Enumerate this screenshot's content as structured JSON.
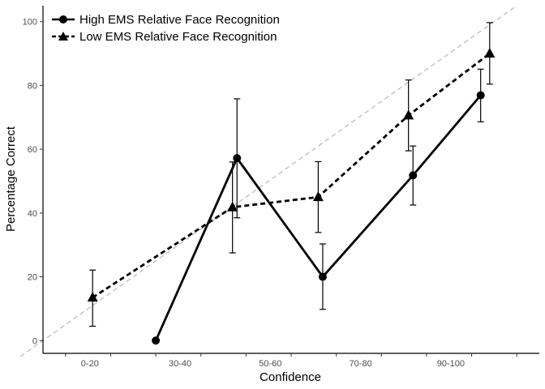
{
  "chart_data": {
    "type": "line",
    "categories": [
      "0-20",
      "30-40",
      "50-60",
      "70-80",
      "90-100"
    ],
    "xlabel": "Confidence",
    "ylabel": "Percentage Correct",
    "ylim": [
      -4,
      105
    ],
    "yticks": [
      0,
      20,
      40,
      60,
      80,
      100
    ],
    "grid": false,
    "legend_position": "top-left",
    "reference_line": {
      "style": "dashed",
      "color": "#bdbdbd",
      "from": [
        0,
        0
      ],
      "to": [
        100,
        100
      ]
    },
    "series": [
      {
        "name": "High EMS Relative Face Recognition",
        "marker": "circle",
        "line_style": "solid",
        "color": "#000000",
        "points": [
          {
            "x": 25,
            "y": 0,
            "err": null
          },
          {
            "x": 43,
            "y": 57.2,
            "err": [
              38.5,
              75.8
            ]
          },
          {
            "x": 62,
            "y": 20,
            "err": [
              9.8,
              30.3
            ]
          },
          {
            "x": 82,
            "y": 51.8,
            "err": [
              42.5,
              61
            ]
          },
          {
            "x": 97,
            "y": 76.9,
            "err": [
              68.6,
              85.1
            ]
          }
        ]
      },
      {
        "name": "Low EMS Relative Face Recognition",
        "marker": "triangle",
        "line_style": "dashed",
        "color": "#000000",
        "points": [
          {
            "x": 11,
            "y": 13.5,
            "err": [
              4.5,
              22.1
            ]
          },
          {
            "x": 42,
            "y": 41.8,
            "err": [
              27.5,
              56
            ]
          },
          {
            "x": 61,
            "y": 45,
            "err": [
              33.9,
              56.1
            ]
          },
          {
            "x": 81,
            "y": 70.6,
            "err": [
              59.5,
              81.7
            ]
          },
          {
            "x": 99,
            "y": 90,
            "err": [
              80.4,
              99.7
            ]
          }
        ]
      }
    ]
  }
}
